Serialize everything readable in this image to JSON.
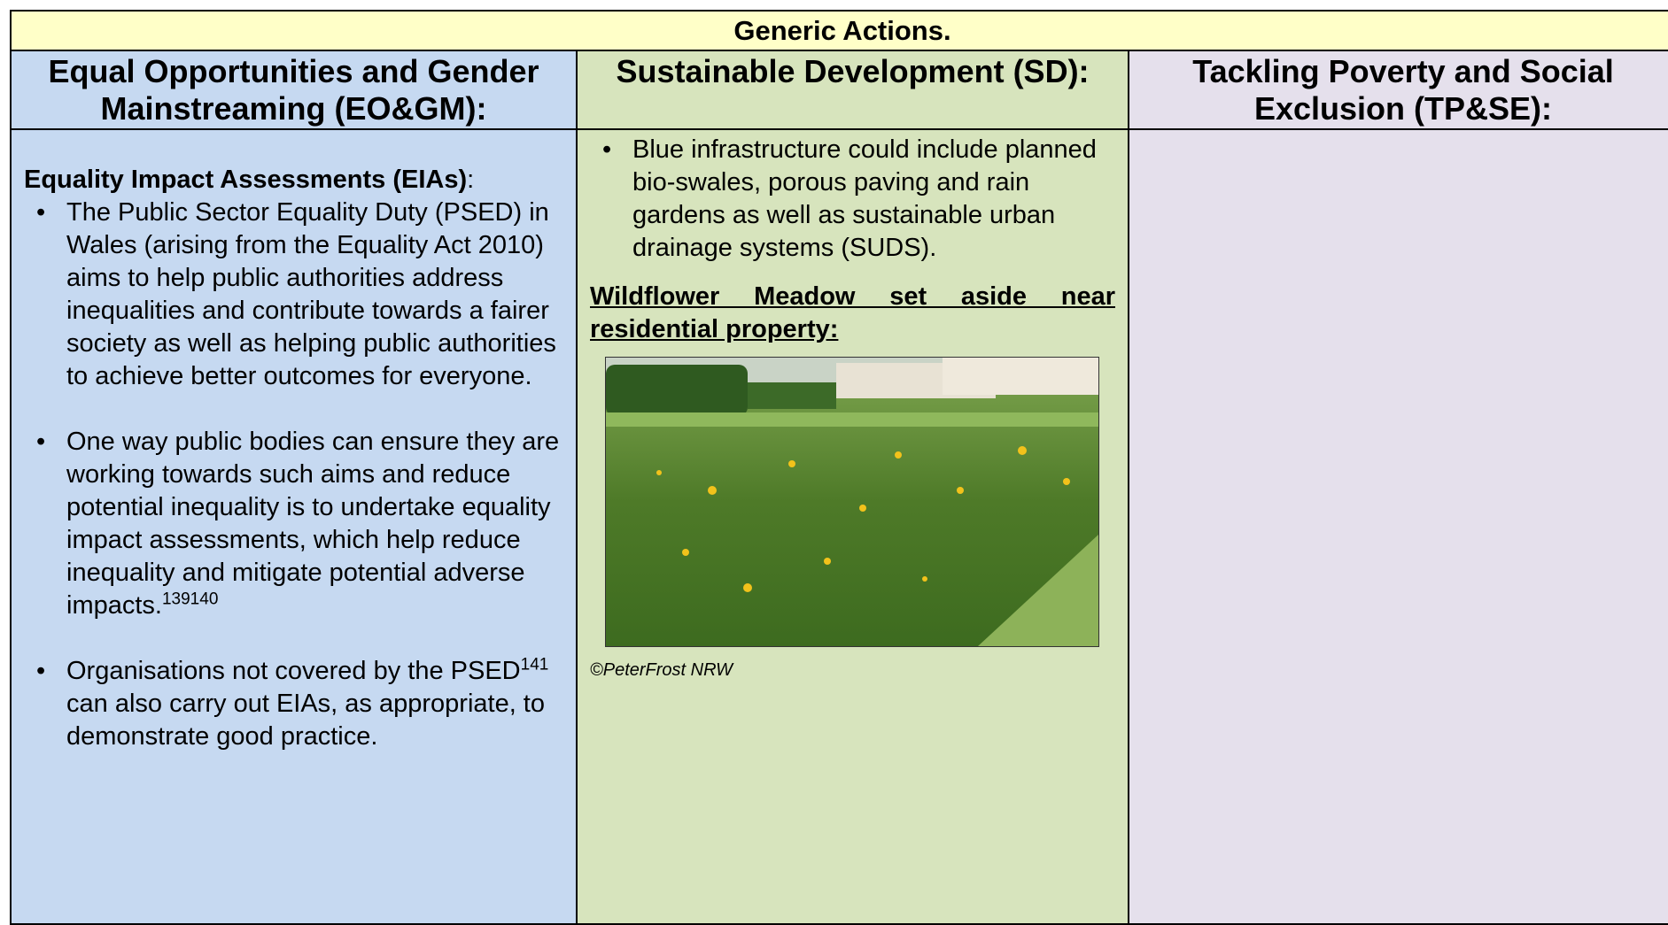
{
  "title": "Generic Actions.",
  "columns": [
    {
      "heading": "Equal Opportunities and Gender Mainstreaming (EO&GM):",
      "subheading": "Equality Impact Assessments (EIAs)",
      "subheading_suffix": ":",
      "bullets": [
        {
          "text": "The Public Sector Equality Duty (PSED) in Wales (arising from the Equality Act 2010) aims to help public authorities address inequalities and contribute towards a fairer society as well as helping public authorities to achieve better outcomes for everyone."
        },
        {
          "text": "One way public bodies can ensure they are working towards such aims and reduce potential inequality is to undertake equality impact assessments, which help reduce inequality and mitigate potential adverse impacts.",
          "footnote": "139140"
        },
        {
          "text": "Organisations not covered by the PSED",
          "footnote": "141",
          "text_after": " can also carry out EIAs, as appropriate, to demonstrate good practice."
        }
      ]
    },
    {
      "heading": "Sustainable Development (SD):",
      "bullets": [
        {
          "text": "Blue infrastructure could include planned bio-swales, porous paving and rain gardens as well as sustainable urban drainage systems (SUDS)."
        }
      ],
      "subheading": "Wildflower Meadow set aside near residential property:",
      "image_caption": "©PeterFrost NRW"
    },
    {
      "heading": "Tackling Poverty and Social Exclusion (TP&SE):"
    }
  ]
}
